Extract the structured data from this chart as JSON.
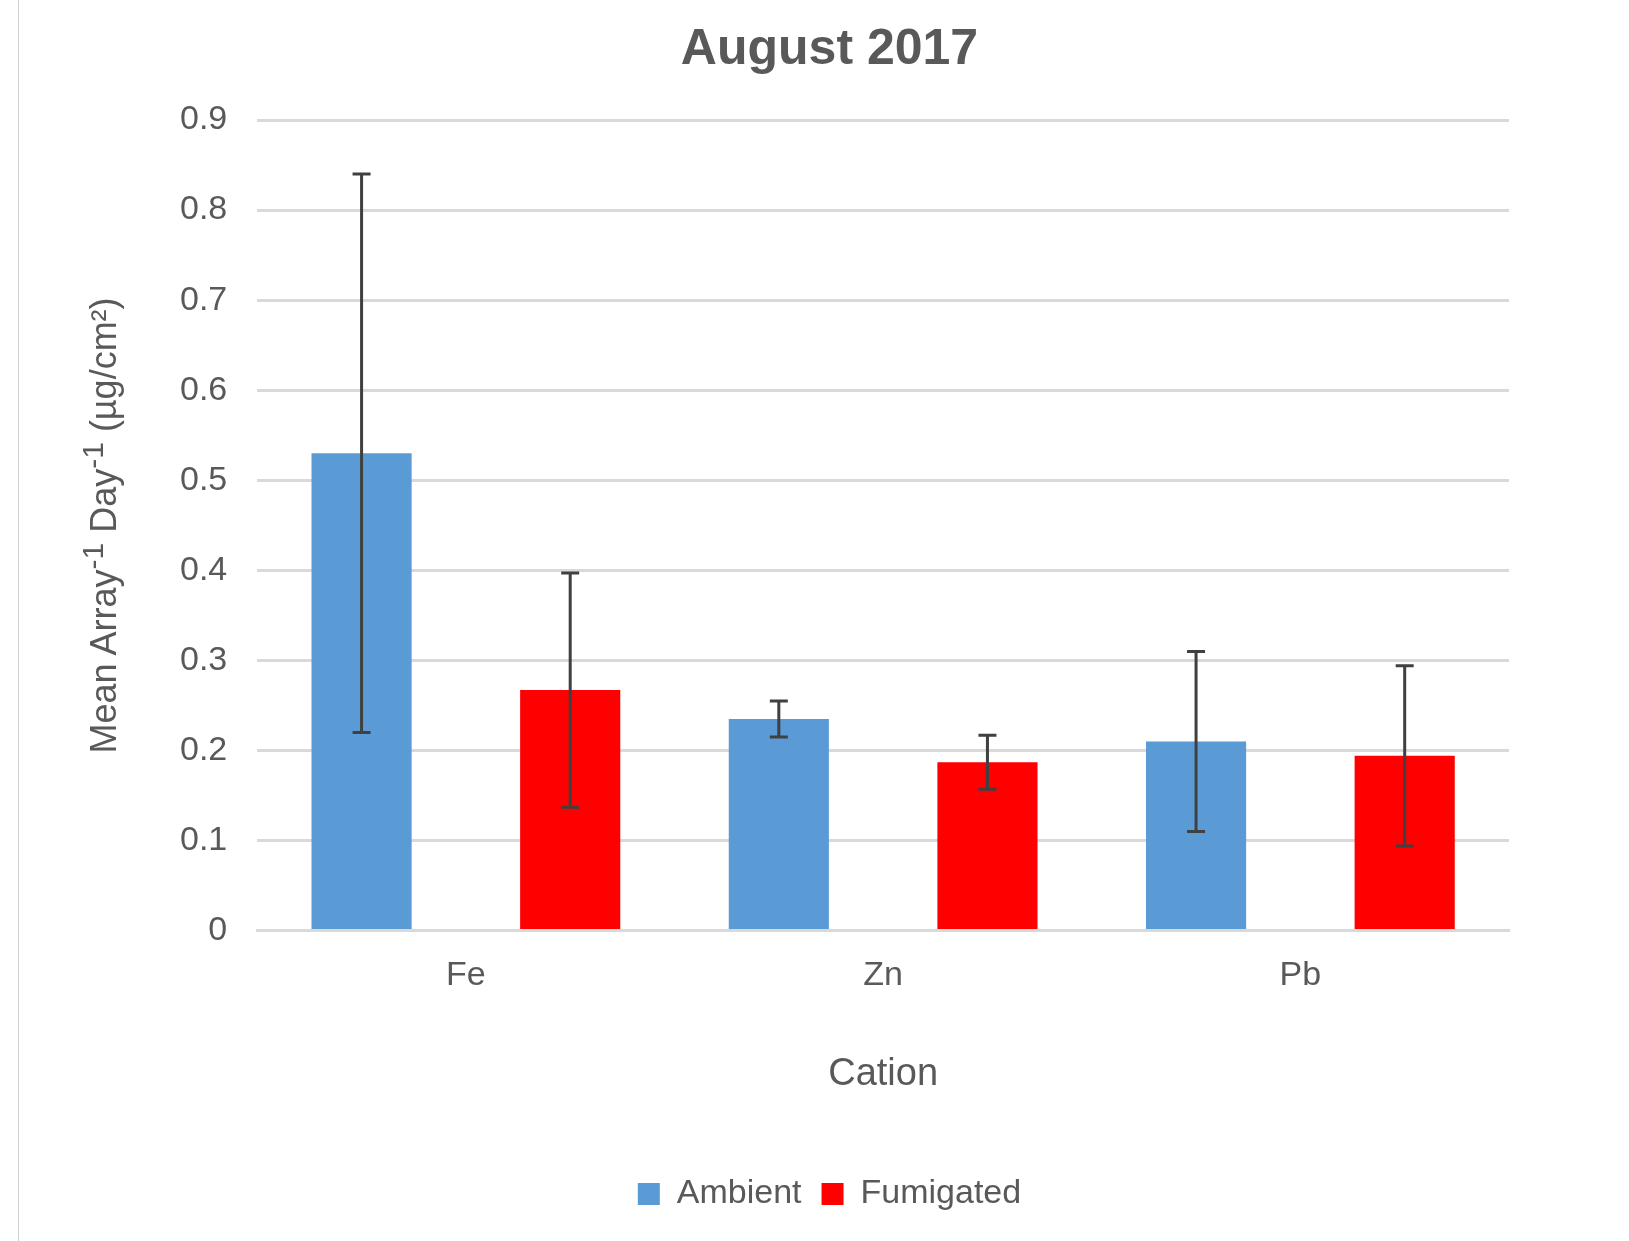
{
  "chart_data": {
    "type": "bar",
    "title": "August 2017",
    "xlabel": "Cation",
    "ylabel": "Mean Array$^{-1}$ Day$^{-1}$ (µg/cm²)",
    "categories": [
      "Fe",
      "Zn",
      "Pb"
    ],
    "series": [
      {
        "name": "Ambient",
        "color": "#5b9bd5",
        "values": [
          0.53,
          0.235,
          0.21
        ],
        "errors": [
          0.31,
          0.02,
          0.1
        ]
      },
      {
        "name": "Fumigated",
        "color": "#ff0000",
        "values": [
          0.267,
          0.187,
          0.194
        ],
        "errors": [
          0.13,
          0.03,
          0.1
        ]
      }
    ],
    "ylim": [
      0,
      0.9
    ],
    "yticks": [
      0,
      0.1,
      0.2,
      0.3,
      0.4,
      0.5,
      0.6,
      0.7,
      0.8,
      0.9
    ],
    "grid": "y",
    "legend": "bottom"
  }
}
